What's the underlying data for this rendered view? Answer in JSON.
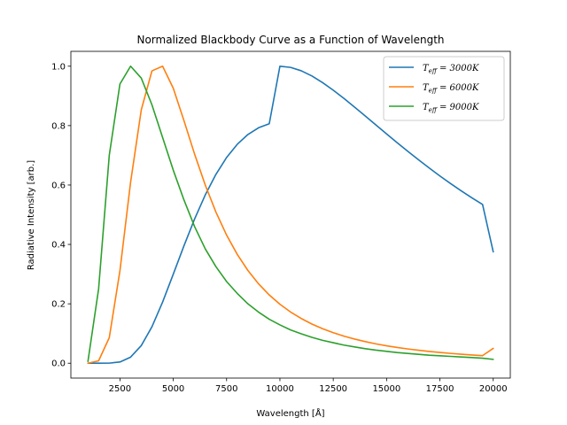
{
  "chart_data": {
    "type": "line",
    "title": "Normalized Blackbody Curve as a Function of Wavelength",
    "xlabel": "Wavelength [Å]",
    "ylabel": "Radiative Intensity [arb.]",
    "xlim": [
      200,
      20800
    ],
    "ylim": [
      -0.05,
      1.05
    ],
    "xticks": [
      2500,
      5000,
      7500,
      10000,
      12500,
      15000,
      17500,
      20000
    ],
    "xtick_labels": [
      "2500",
      "5000",
      "7500",
      "10000",
      "12500",
      "15000",
      "17500",
      "20000"
    ],
    "yticks": [
      0.0,
      0.2,
      0.4,
      0.6,
      0.8,
      1.0
    ],
    "ytick_labels": [
      "0.0",
      "0.2",
      "0.4",
      "0.6",
      "0.8",
      "1.0"
    ],
    "grid": false,
    "legend_position": "top-right",
    "x": [
      1000,
      1500,
      2000,
      2500,
      3000,
      3500,
      4000,
      4500,
      5000,
      5500,
      6000,
      6500,
      7000,
      7500,
      8000,
      8500,
      9000,
      9500,
      10000,
      10500,
      11000,
      11500,
      12000,
      12500,
      13000,
      13500,
      14000,
      14500,
      15000,
      15500,
      16000,
      16500,
      17000,
      17500,
      18000,
      18500,
      19000,
      19500,
      20000
    ],
    "series": [
      {
        "name": "T_eff = 3000K",
        "label_text": "T",
        "label_sub": "eff",
        "label_val": " = 3000K",
        "color": "#1f77b4",
        "values": [
          0.0,
          0.0,
          0.0003,
          0.0041,
          0.0205,
          0.0593,
          0.1227,
          0.2059,
          0.2997,
          0.3951,
          0.4856,
          0.5666,
          0.6359,
          0.6927,
          0.7371,
          0.7701,
          0.7927,
          0.8063,
          1.0,
          0.996,
          0.9846,
          0.967,
          0.9448,
          0.9193,
          0.8915,
          0.8623,
          0.8324,
          0.8022,
          0.7721,
          0.7423,
          0.7131,
          0.6847,
          0.6571,
          0.6305,
          0.6049,
          0.5804,
          0.5569,
          0.5344,
          0.375
        ]
      },
      {
        "name": "T_eff = 6000K",
        "label_text": "T",
        "label_sub": "eff",
        "label_val": " = 6000K",
        "color": "#ff7f0e",
        "values": [
          0.0,
          0.0081,
          0.086,
          0.3115,
          0.6095,
          0.8529,
          0.9842,
          1.0,
          0.926,
          0.817,
          0.704,
          0.5999,
          0.5088,
          0.4313,
          0.3664,
          0.3122,
          0.2672,
          0.2298,
          0.1986,
          0.1724,
          0.1505,
          0.1319,
          0.1162,
          0.1028,
          0.0912,
          0.0813,
          0.0727,
          0.0652,
          0.0587,
          0.053,
          0.048,
          0.0436,
          0.0397,
          0.0362,
          0.0331,
          0.0303,
          0.0278,
          0.0256,
          0.05
        ]
      },
      {
        "name": "T_eff = 9000K",
        "label_text": "T",
        "label_sub": "eff",
        "label_val": " = 9000K",
        "color": "#2ca02c",
        "values": [
          0.006,
          0.25,
          0.7,
          0.94,
          1.0,
          0.96,
          0.87,
          0.76,
          0.65,
          0.55,
          0.46,
          0.385,
          0.325,
          0.275,
          0.235,
          0.2,
          0.172,
          0.148,
          0.129,
          0.112,
          0.099,
          0.087,
          0.077,
          0.069,
          0.061,
          0.055,
          0.049,
          0.044,
          0.04,
          0.036,
          0.033,
          0.03,
          0.027,
          0.025,
          0.023,
          0.021,
          0.019,
          0.017,
          0.013
        ]
      }
    ]
  }
}
